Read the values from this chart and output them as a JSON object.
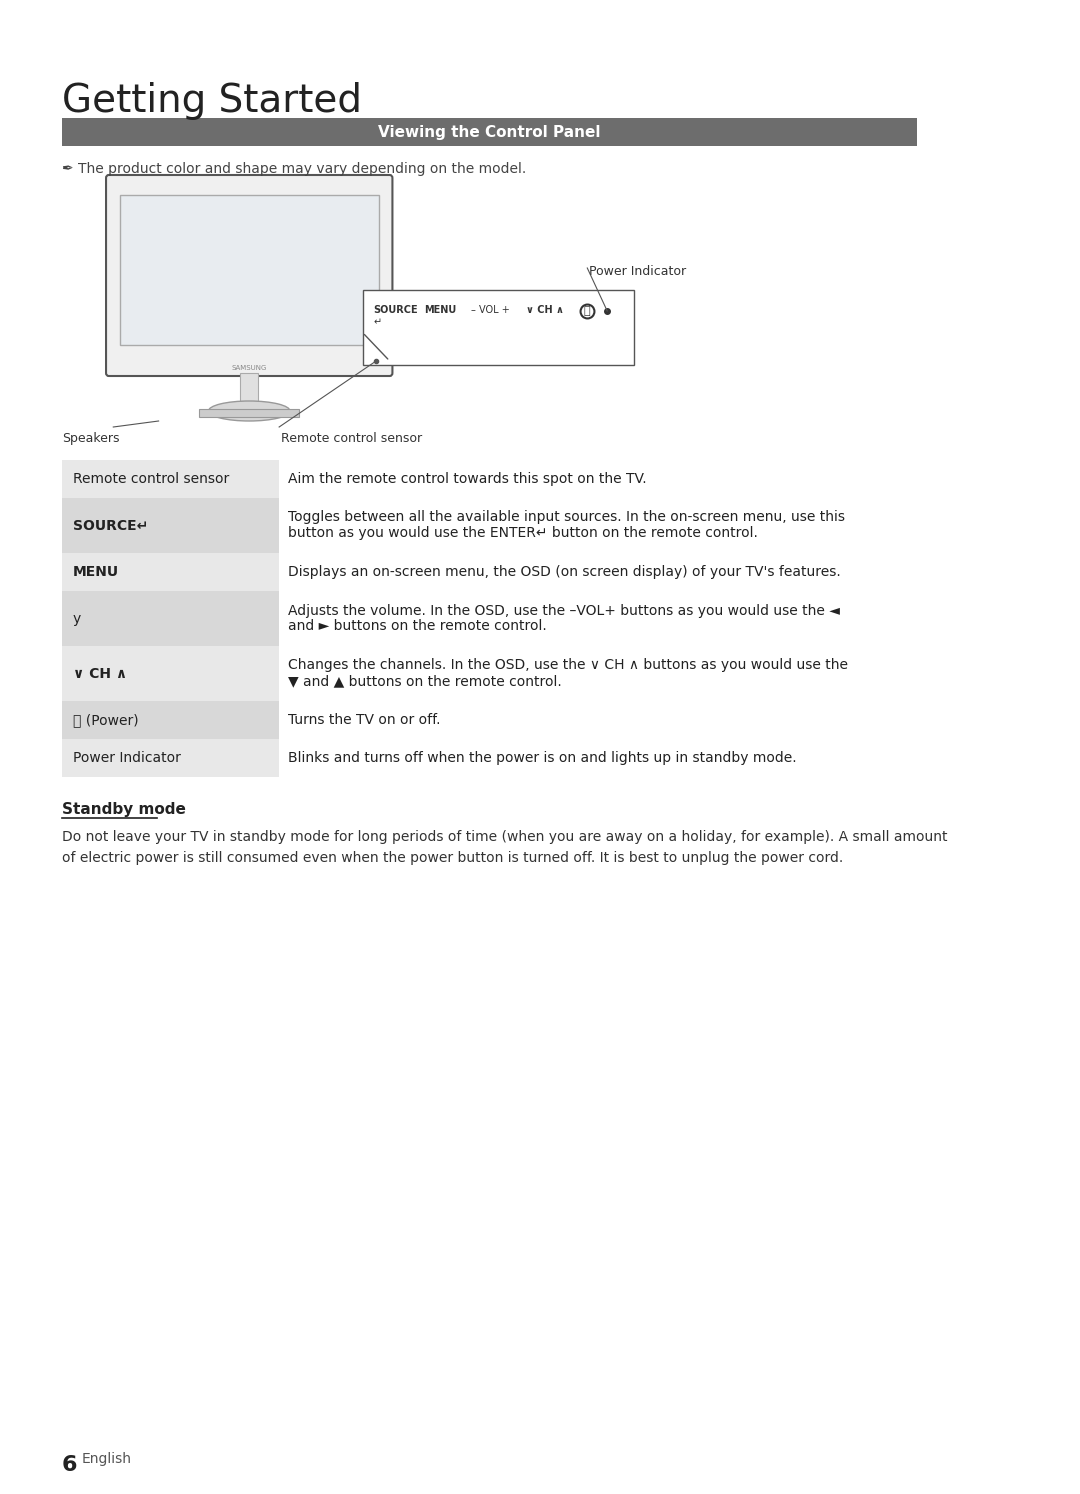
{
  "title": "Getting Started",
  "section_header": "Viewing the Control Panel",
  "section_header_bg": "#6d6d6d",
  "note_text": "The product color and shape may vary depending on the model.",
  "table_rows": [
    {
      "label": "Remote control sensor",
      "label_bold": false,
      "description": "Aim the remote control towards this spot on the TV.",
      "bg": "#e8e8e8"
    },
    {
      "label": "SOURCE↵",
      "label_bold": true,
      "description": "Toggles between all the available input sources. In the on-screen menu, use this\nbutton as you would use the ENTER↵ button on the remote control.",
      "bg": "#d8d8d8"
    },
    {
      "label": "MENU",
      "label_bold": true,
      "description": "Displays an on-screen menu, the OSD (on screen display) of your TV's features.",
      "bg": "#e8e8e8"
    },
    {
      "label": "y",
      "label_bold": false,
      "description": "Adjusts the volume. In the OSD, use the –VOL+ buttons as you would use the ◄\nand ► buttons on the remote control.",
      "bg": "#d8d8d8"
    },
    {
      "label": "∨ CH ∧",
      "label_bold": true,
      "description": "Changes the channels. In the OSD, use the ∨ CH ∧ buttons as you would use the\n▼ and ▲ buttons on the remote control.",
      "bg": "#e8e8e8"
    },
    {
      "label": "⏻ (Power)",
      "label_bold": false,
      "description": "Turns the TV on or off.",
      "bg": "#d8d8d8"
    },
    {
      "label": "Power Indicator",
      "label_bold": false,
      "description": "Blinks and turns off when the power is on and lights up in standby mode.",
      "bg": "#e8e8e8"
    }
  ],
  "standby_title": "Standby mode",
  "standby_text": "Do not leave your TV in standby mode for long periods of time (when you are away on a holiday, for example). A small amount\nof electric power is still consumed even when the power button is turned off. It is best to unplug the power cord.",
  "page_number": "6",
  "page_lang": "English",
  "bg_color": "#ffffff",
  "text_color": "#333333"
}
